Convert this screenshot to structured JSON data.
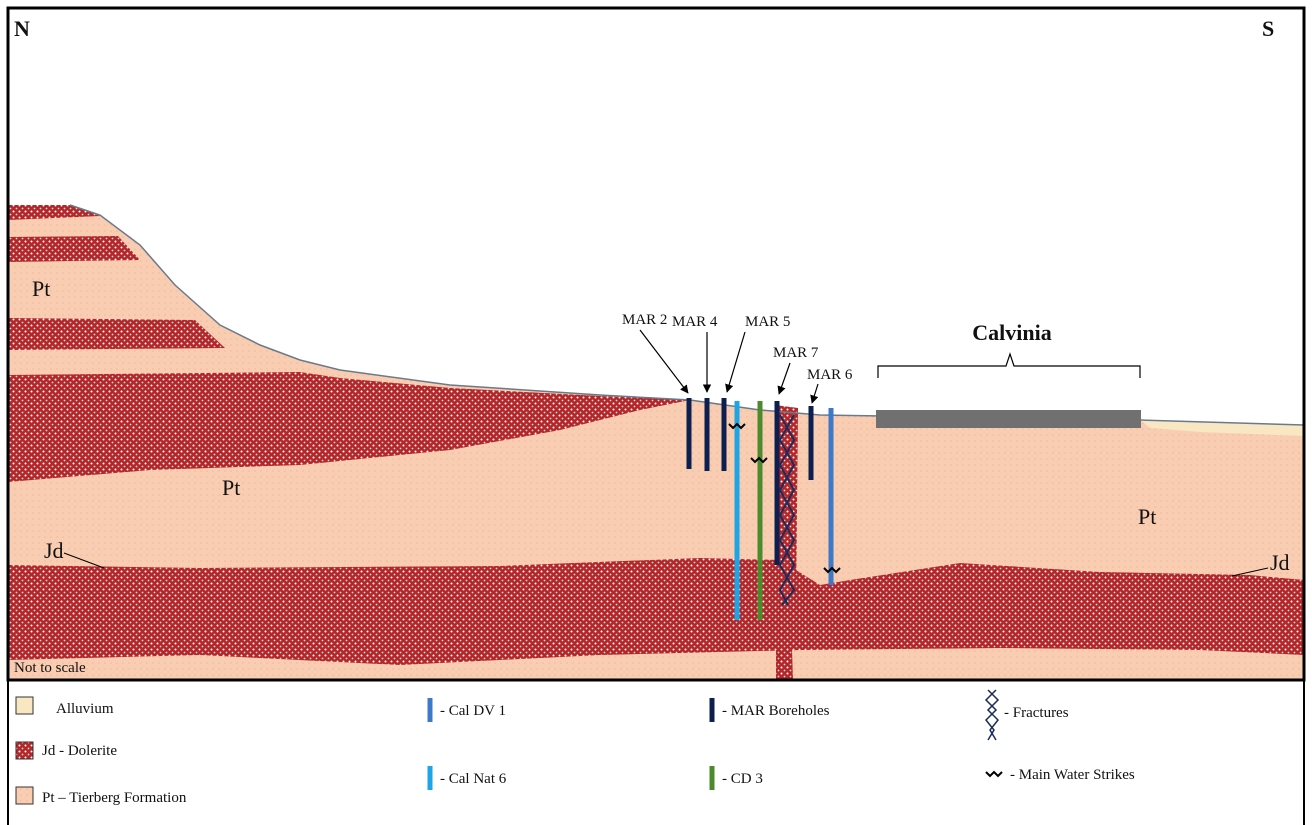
{
  "compass": {
    "north": "N",
    "south": "S"
  },
  "formation_labels": [
    "Pt",
    "Pt",
    "Pt"
  ],
  "dolerite_labels": [
    "Jd",
    "Jd"
  ],
  "boreholes": [
    "MAR 2",
    "MAR 4",
    "MAR 5",
    "MAR 7",
    "MAR 6"
  ],
  "town": "Calvinia",
  "note": "Not to scale",
  "legend": [
    "Alluvium",
    "Jd - Dolerite",
    "Pt – Tierberg Formation",
    "- Cal DV 1",
    "- Cal Nat 6",
    "- MAR Boreholes",
    "- CD 3",
    "- Fractures",
    "- Main Water Strikes"
  ]
}
